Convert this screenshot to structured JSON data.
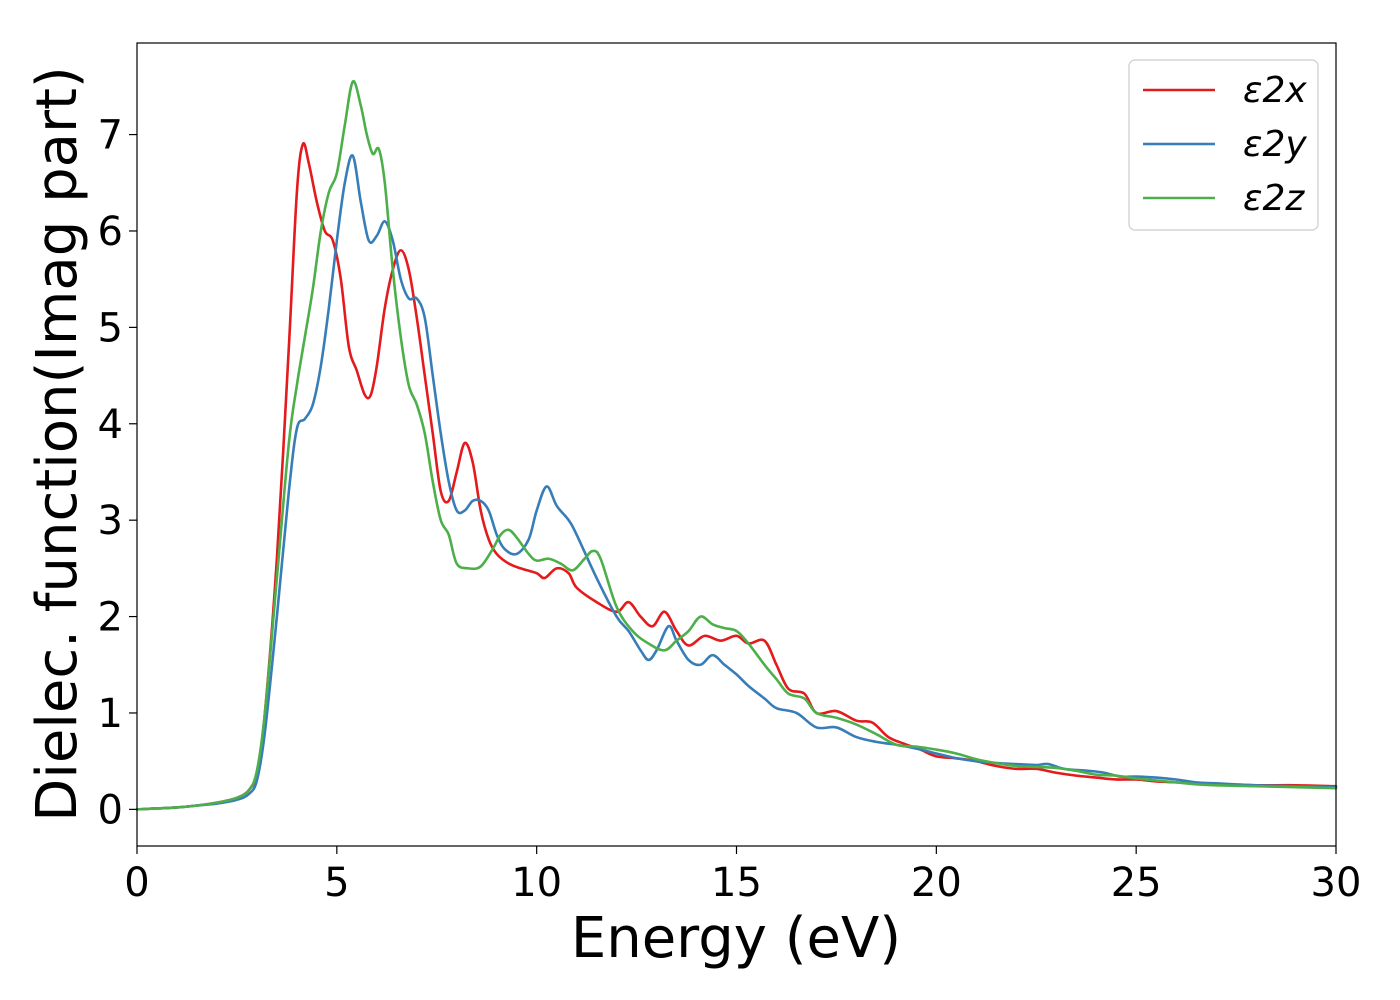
{
  "chart_data": {
    "type": "line",
    "title": "",
    "xlabel": "Energy (eV)",
    "ylabel": "Dielec. function(Imag part)",
    "xlim": [
      0,
      30
    ],
    "ylim": [
      -0.38,
      7.95
    ],
    "xticks": [
      0,
      5,
      10,
      15,
      20,
      25,
      30
    ],
    "yticks": [
      0,
      1,
      2,
      3,
      4,
      5,
      6,
      7
    ],
    "grid": false,
    "legend_position": "top-right",
    "series": [
      {
        "name": "ε2x",
        "color": "#e41a1c",
        "points": [
          [
            0,
            0.0
          ],
          [
            1,
            0.02
          ],
          [
            1.5,
            0.04
          ],
          [
            2,
            0.07
          ],
          [
            2.5,
            0.12
          ],
          [
            2.8,
            0.2
          ],
          [
            3.0,
            0.38
          ],
          [
            3.2,
            1.0
          ],
          [
            3.5,
            2.6
          ],
          [
            3.8,
            4.8
          ],
          [
            4.0,
            6.4
          ],
          [
            4.15,
            6.9
          ],
          [
            4.3,
            6.7
          ],
          [
            4.5,
            6.3
          ],
          [
            4.7,
            6.0
          ],
          [
            4.9,
            5.9
          ],
          [
            5.1,
            5.5
          ],
          [
            5.3,
            4.8
          ],
          [
            5.5,
            4.55
          ],
          [
            5.7,
            4.3
          ],
          [
            5.85,
            4.3
          ],
          [
            6.0,
            4.6
          ],
          [
            6.2,
            5.2
          ],
          [
            6.4,
            5.6
          ],
          [
            6.6,
            5.8
          ],
          [
            6.8,
            5.6
          ],
          [
            7.0,
            5.1
          ],
          [
            7.2,
            4.5
          ],
          [
            7.4,
            3.9
          ],
          [
            7.6,
            3.3
          ],
          [
            7.8,
            3.2
          ],
          [
            8.0,
            3.5
          ],
          [
            8.2,
            3.8
          ],
          [
            8.4,
            3.6
          ],
          [
            8.6,
            3.1
          ],
          [
            8.8,
            2.8
          ],
          [
            9.0,
            2.65
          ],
          [
            9.3,
            2.55
          ],
          [
            9.6,
            2.5
          ],
          [
            10.0,
            2.45
          ],
          [
            10.2,
            2.4
          ],
          [
            10.5,
            2.5
          ],
          [
            10.8,
            2.45
          ],
          [
            11.0,
            2.3
          ],
          [
            11.5,
            2.15
          ],
          [
            12.0,
            2.05
          ],
          [
            12.3,
            2.15
          ],
          [
            12.6,
            2.0
          ],
          [
            12.9,
            1.9
          ],
          [
            13.2,
            2.05
          ],
          [
            13.5,
            1.85
          ],
          [
            13.8,
            1.7
          ],
          [
            14.2,
            1.8
          ],
          [
            14.6,
            1.75
          ],
          [
            15.0,
            1.8
          ],
          [
            15.3,
            1.72
          ],
          [
            15.7,
            1.75
          ],
          [
            16.0,
            1.5
          ],
          [
            16.3,
            1.25
          ],
          [
            16.7,
            1.2
          ],
          [
            17.0,
            1.0
          ],
          [
            17.5,
            1.02
          ],
          [
            18.0,
            0.92
          ],
          [
            18.4,
            0.9
          ],
          [
            18.8,
            0.75
          ],
          [
            19.2,
            0.68
          ],
          [
            19.6,
            0.62
          ],
          [
            20.0,
            0.55
          ],
          [
            20.5,
            0.53
          ],
          [
            21.0,
            0.5
          ],
          [
            21.5,
            0.45
          ],
          [
            22.0,
            0.42
          ],
          [
            22.5,
            0.42
          ],
          [
            23.0,
            0.38
          ],
          [
            23.5,
            0.35
          ],
          [
            24.0,
            0.33
          ],
          [
            24.5,
            0.31
          ],
          [
            25.0,
            0.31
          ],
          [
            25.5,
            0.29
          ],
          [
            26.0,
            0.28
          ],
          [
            27.0,
            0.26
          ],
          [
            28.0,
            0.25
          ],
          [
            29.0,
            0.25
          ],
          [
            30.0,
            0.24
          ]
        ]
      },
      {
        "name": "ε2y",
        "color": "#377eb8",
        "points": [
          [
            0,
            0.0
          ],
          [
            1,
            0.02
          ],
          [
            1.5,
            0.04
          ],
          [
            2,
            0.06
          ],
          [
            2.5,
            0.1
          ],
          [
            2.8,
            0.16
          ],
          [
            3.0,
            0.3
          ],
          [
            3.2,
            0.8
          ],
          [
            3.5,
            2.0
          ],
          [
            3.8,
            3.3
          ],
          [
            4.0,
            3.95
          ],
          [
            4.2,
            4.05
          ],
          [
            4.4,
            4.2
          ],
          [
            4.6,
            4.6
          ],
          [
            4.8,
            5.2
          ],
          [
            5.0,
            5.9
          ],
          [
            5.2,
            6.5
          ],
          [
            5.4,
            6.78
          ],
          [
            5.6,
            6.3
          ],
          [
            5.8,
            5.9
          ],
          [
            6.0,
            5.95
          ],
          [
            6.2,
            6.1
          ],
          [
            6.4,
            5.9
          ],
          [
            6.6,
            5.5
          ],
          [
            6.8,
            5.3
          ],
          [
            7.0,
            5.3
          ],
          [
            7.2,
            5.1
          ],
          [
            7.4,
            4.5
          ],
          [
            7.6,
            3.9
          ],
          [
            7.8,
            3.4
          ],
          [
            8.0,
            3.1
          ],
          [
            8.2,
            3.1
          ],
          [
            8.4,
            3.2
          ],
          [
            8.6,
            3.2
          ],
          [
            8.8,
            3.1
          ],
          [
            9.0,
            2.85
          ],
          [
            9.2,
            2.7
          ],
          [
            9.5,
            2.65
          ],
          [
            9.8,
            2.8
          ],
          [
            10.0,
            3.1
          ],
          [
            10.25,
            3.35
          ],
          [
            10.5,
            3.15
          ],
          [
            10.8,
            3.0
          ],
          [
            11.0,
            2.85
          ],
          [
            11.5,
            2.4
          ],
          [
            12.0,
            2.0
          ],
          [
            12.3,
            1.85
          ],
          [
            12.6,
            1.65
          ],
          [
            12.8,
            1.55
          ],
          [
            13.0,
            1.65
          ],
          [
            13.3,
            1.9
          ],
          [
            13.5,
            1.75
          ],
          [
            13.8,
            1.55
          ],
          [
            14.1,
            1.5
          ],
          [
            14.4,
            1.6
          ],
          [
            14.7,
            1.5
          ],
          [
            15.0,
            1.4
          ],
          [
            15.3,
            1.28
          ],
          [
            15.7,
            1.15
          ],
          [
            16.0,
            1.05
          ],
          [
            16.5,
            1.0
          ],
          [
            17.0,
            0.85
          ],
          [
            17.5,
            0.85
          ],
          [
            18.0,
            0.75
          ],
          [
            18.5,
            0.7
          ],
          [
            19.0,
            0.67
          ],
          [
            19.5,
            0.63
          ],
          [
            20.0,
            0.58
          ],
          [
            20.5,
            0.53
          ],
          [
            21.0,
            0.5
          ],
          [
            21.5,
            0.48
          ],
          [
            22.0,
            0.47
          ],
          [
            22.5,
            0.46
          ],
          [
            22.8,
            0.47
          ],
          [
            23.2,
            0.42
          ],
          [
            23.8,
            0.4
          ],
          [
            24.2,
            0.38
          ],
          [
            24.6,
            0.34
          ],
          [
            25.0,
            0.34
          ],
          [
            25.5,
            0.33
          ],
          [
            26.0,
            0.31
          ],
          [
            26.5,
            0.28
          ],
          [
            27.0,
            0.27
          ],
          [
            28.0,
            0.25
          ],
          [
            29.0,
            0.24
          ],
          [
            30.0,
            0.23
          ]
        ]
      },
      {
        "name": "ε2z",
        "color": "#4daf4a",
        "points": [
          [
            0,
            0.0
          ],
          [
            1,
            0.02
          ],
          [
            1.5,
            0.04
          ],
          [
            2,
            0.07
          ],
          [
            2.5,
            0.12
          ],
          [
            2.8,
            0.2
          ],
          [
            3.0,
            0.4
          ],
          [
            3.2,
            1.0
          ],
          [
            3.5,
            2.4
          ],
          [
            3.8,
            3.8
          ],
          [
            4.0,
            4.4
          ],
          [
            4.2,
            4.9
          ],
          [
            4.4,
            5.4
          ],
          [
            4.6,
            6.0
          ],
          [
            4.8,
            6.4
          ],
          [
            5.0,
            6.6
          ],
          [
            5.2,
            7.1
          ],
          [
            5.4,
            7.55
          ],
          [
            5.6,
            7.3
          ],
          [
            5.75,
            7.0
          ],
          [
            5.9,
            6.8
          ],
          [
            6.05,
            6.85
          ],
          [
            6.2,
            6.5
          ],
          [
            6.4,
            5.6
          ],
          [
            6.6,
            4.9
          ],
          [
            6.8,
            4.4
          ],
          [
            7.0,
            4.2
          ],
          [
            7.2,
            3.9
          ],
          [
            7.4,
            3.4
          ],
          [
            7.6,
            3.0
          ],
          [
            7.8,
            2.85
          ],
          [
            8.0,
            2.55
          ],
          [
            8.3,
            2.5
          ],
          [
            8.6,
            2.52
          ],
          [
            8.9,
            2.7
          ],
          [
            9.1,
            2.85
          ],
          [
            9.3,
            2.9
          ],
          [
            9.5,
            2.82
          ],
          [
            9.8,
            2.65
          ],
          [
            10.0,
            2.58
          ],
          [
            10.3,
            2.6
          ],
          [
            10.6,
            2.55
          ],
          [
            10.9,
            2.48
          ],
          [
            11.2,
            2.6
          ],
          [
            11.4,
            2.68
          ],
          [
            11.6,
            2.6
          ],
          [
            12.0,
            2.1
          ],
          [
            12.4,
            1.85
          ],
          [
            12.8,
            1.72
          ],
          [
            13.2,
            1.65
          ],
          [
            13.5,
            1.75
          ],
          [
            13.8,
            1.85
          ],
          [
            14.1,
            2.0
          ],
          [
            14.4,
            1.92
          ],
          [
            14.7,
            1.88
          ],
          [
            15.0,
            1.85
          ],
          [
            15.3,
            1.72
          ],
          [
            15.7,
            1.5
          ],
          [
            16.0,
            1.35
          ],
          [
            16.3,
            1.2
          ],
          [
            16.7,
            1.15
          ],
          [
            17.0,
            1.0
          ],
          [
            17.5,
            0.95
          ],
          [
            18.0,
            0.88
          ],
          [
            18.5,
            0.78
          ],
          [
            19.0,
            0.67
          ],
          [
            19.5,
            0.65
          ],
          [
            20.0,
            0.62
          ],
          [
            20.5,
            0.58
          ],
          [
            21.0,
            0.52
          ],
          [
            21.5,
            0.48
          ],
          [
            22.0,
            0.45
          ],
          [
            22.5,
            0.44
          ],
          [
            23.0,
            0.43
          ],
          [
            23.5,
            0.4
          ],
          [
            24.0,
            0.36
          ],
          [
            24.5,
            0.35
          ],
          [
            25.0,
            0.32
          ],
          [
            25.5,
            0.3
          ],
          [
            26.0,
            0.28
          ],
          [
            26.5,
            0.26
          ],
          [
            27.0,
            0.25
          ],
          [
            28.0,
            0.24
          ],
          [
            29.0,
            0.23
          ],
          [
            30.0,
            0.22
          ]
        ]
      }
    ]
  }
}
